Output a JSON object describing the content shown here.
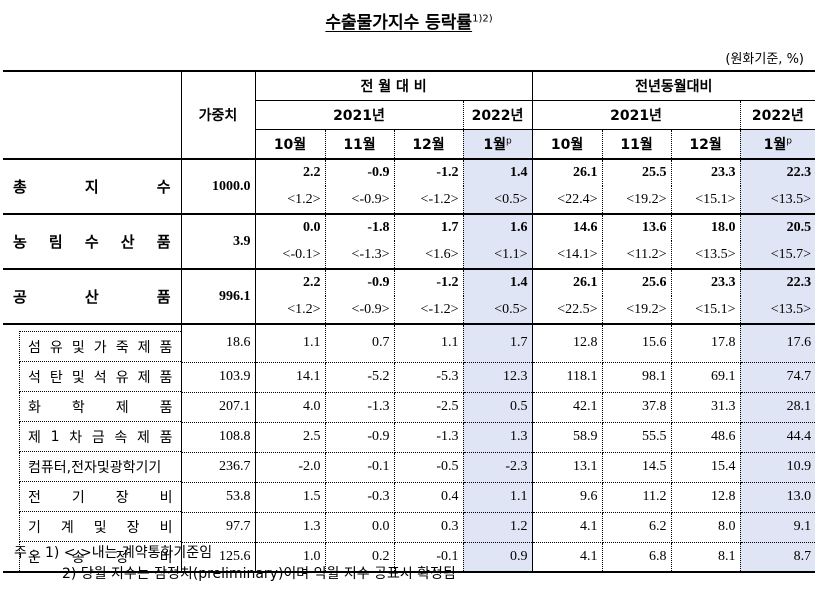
{
  "title": {
    "text": "수출물가지수 등락률",
    "superscript": "1)2)"
  },
  "unit_note": "(원화기준, %)",
  "header": {
    "weight_label": "가중치",
    "groups": [
      {
        "label": "전 월 대 비",
        "year_2021": "2021년",
        "year_2022": "2022년"
      },
      {
        "label": "전년동월대비",
        "year_2021": "2021년",
        "year_2022": "2022년"
      }
    ],
    "months": [
      "10월",
      "11월",
      "12월",
      "1월"
    ],
    "preliminary_mark": "p"
  },
  "main_rows": [
    {
      "label_chars": [
        "총",
        "지",
        "수"
      ],
      "weight": "1000.0",
      "values": [
        "2.2",
        "-0.9",
        "-1.2",
        "1.4",
        "26.1",
        "25.5",
        "23.3",
        "22.3"
      ],
      "contract": [
        "<1.2>",
        "<-0.9>",
        "<-1.2>",
        "<0.5>",
        "<22.4>",
        "<19.2>",
        "<15.1>",
        "<13.5>"
      ]
    },
    {
      "label_chars": [
        "농",
        "림",
        "수",
        "산",
        "품"
      ],
      "weight": "3.9",
      "values": [
        "0.0",
        "-1.8",
        "1.7",
        "1.6",
        "14.6",
        "13.6",
        "18.0",
        "20.5"
      ],
      "contract": [
        "<-0.1>",
        "<-1.3>",
        "<1.6>",
        "<1.1>",
        "<14.1>",
        "<11.2>",
        "<13.5>",
        "<15.7>"
      ]
    },
    {
      "label_chars": [
        "공",
        "산",
        "품"
      ],
      "weight": "996.1",
      "values": [
        "2.2",
        "-0.9",
        "-1.2",
        "1.4",
        "26.1",
        "25.6",
        "23.3",
        "22.3"
      ],
      "contract": [
        "<1.2>",
        "<-0.9>",
        "<-1.2>",
        "<0.5>",
        "<22.5>",
        "<19.2>",
        "<15.1>",
        "<13.5>"
      ]
    }
  ],
  "sub_rows": [
    {
      "label_chars": [
        "섬",
        "유",
        "및",
        "가",
        "죽",
        "제",
        "품"
      ],
      "weight": "18.6",
      "values": [
        "1.1",
        "0.7",
        "1.1",
        "1.7",
        "12.8",
        "15.6",
        "17.8",
        "17.6"
      ]
    },
    {
      "label_chars": [
        "석",
        "탄",
        "및",
        "석",
        "유",
        "제",
        "품"
      ],
      "weight": "103.9",
      "values": [
        "14.1",
        "-5.2",
        "-5.3",
        "12.3",
        "118.1",
        "98.1",
        "69.1",
        "74.7"
      ]
    },
    {
      "label_chars": [
        "화",
        "학",
        "제",
        "품"
      ],
      "weight": "207.1",
      "values": [
        "4.0",
        "-1.3",
        "-2.5",
        "0.5",
        "42.1",
        "37.8",
        "31.3",
        "28.1"
      ]
    },
    {
      "label_chars": [
        "제",
        "1",
        "차",
        "금",
        "속",
        "제",
        "품"
      ],
      "weight": "108.8",
      "values": [
        "2.5",
        "-0.9",
        "-1.3",
        "1.3",
        "58.9",
        "55.5",
        "48.6",
        "44.4"
      ]
    },
    {
      "label_chars": [
        "컴퓨터,전자및광학기기"
      ],
      "weight": "236.7",
      "values": [
        "-2.0",
        "-0.1",
        "-0.5",
        "-2.3",
        "13.1",
        "14.5",
        "15.4",
        "10.9"
      ]
    },
    {
      "label_chars": [
        "전",
        "기",
        "장",
        "비"
      ],
      "weight": "53.8",
      "values": [
        "1.5",
        "-0.3",
        "0.4",
        "1.1",
        "9.6",
        "11.2",
        "12.8",
        "13.0"
      ]
    },
    {
      "label_chars": [
        "기",
        "계",
        "및",
        "장",
        "비"
      ],
      "weight": "97.7",
      "values": [
        "1.3",
        "0.0",
        "0.3",
        "1.2",
        "4.1",
        "6.2",
        "8.0",
        "9.1"
      ]
    },
    {
      "label_chars": [
        "운",
        "송",
        "장",
        "비"
      ],
      "weight": "125.6",
      "values": [
        "1.0",
        "0.2",
        "-0.1",
        "0.9",
        "4.1",
        "6.8",
        "8.1",
        "8.7"
      ]
    }
  ],
  "notes": {
    "prefix": "주 :",
    "note1": "1) < >내는 계약통화기준임",
    "note2": "2) 당월 지수는 잠정치(preliminary)이며 익월 지수 공표시 확정됨"
  },
  "colors": {
    "shade": "#dfe5f4",
    "border": "#000000"
  }
}
